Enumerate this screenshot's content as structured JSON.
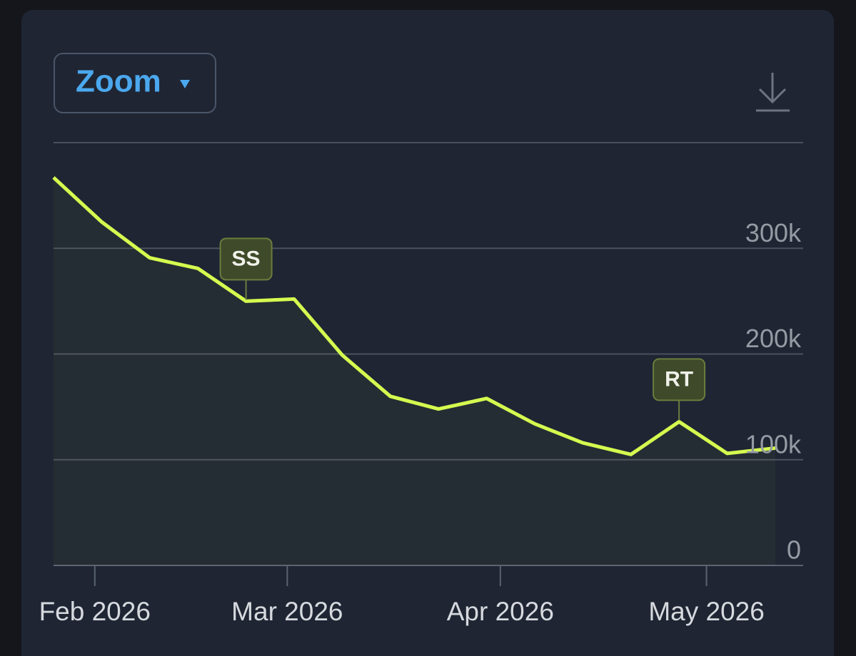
{
  "zoom_button": {
    "label": "Zoom"
  },
  "chart_data": {
    "type": "line",
    "xlim": [
      0,
      15.58
    ],
    "xticks": [
      {
        "value": 0.857,
        "label": "Feb 2026"
      },
      {
        "value": 4.857,
        "label": "Mar 2026"
      },
      {
        "value": 9.286,
        "label": "Apr 2026"
      },
      {
        "value": 13.571,
        "label": "May 2026"
      }
    ],
    "ylim": [
      0,
      400000
    ],
    "yticks": [
      0,
      {
        "value": 100000,
        "label": "100k"
      },
      {
        "value": 200000,
        "label": "200k"
      },
      {
        "value": 300000,
        "label": "300k"
      }
    ],
    "grid": true,
    "series": [
      {
        "color": "#d4fb4f",
        "values": [
          367000,
          325000,
          291000,
          281000,
          250000,
          252000,
          199000,
          160000,
          148000,
          158000,
          134000,
          116000,
          105000,
          136000,
          106000,
          111000
        ]
      }
    ],
    "annotations": [
      {
        "label": "SS",
        "x": 4
      },
      {
        "label": "RT",
        "x": 13
      }
    ]
  }
}
